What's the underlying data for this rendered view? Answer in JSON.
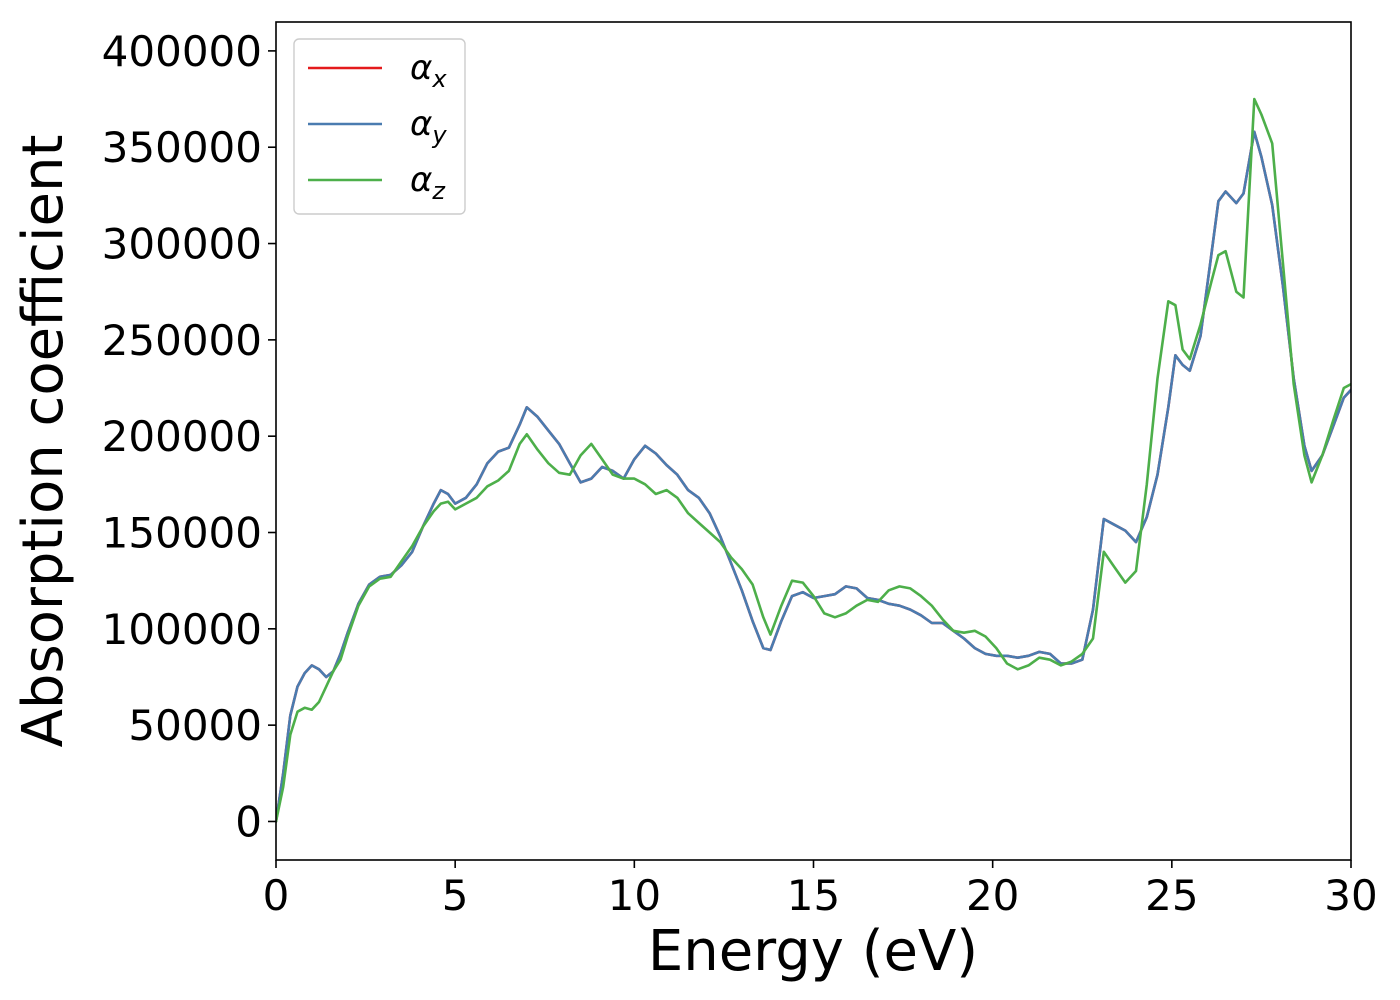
{
  "chart_data": {
    "type": "line",
    "xlabel": "Energy (eV)",
    "ylabel": "Absorption coefficient",
    "xlim": [
      0,
      30
    ],
    "ylim": [
      -20000,
      415000
    ],
    "xticks": [
      0,
      5,
      10,
      15,
      20,
      25,
      30
    ],
    "yticks": [
      0,
      50000,
      100000,
      150000,
      200000,
      250000,
      300000,
      350000,
      400000
    ],
    "grid": false,
    "legend_position": "top-left",
    "series": [
      {
        "name": "α_x",
        "name_base": "α",
        "name_sub": "x",
        "color": "#e41a1c",
        "x": [
          0,
          0.2,
          0.4,
          0.6,
          0.8,
          1.0,
          1.2,
          1.4,
          1.6,
          1.8,
          2.0,
          2.3,
          2.6,
          2.9,
          3.2,
          3.5,
          3.8,
          4.1,
          4.4,
          4.6,
          4.8,
          5.0,
          5.3,
          5.6,
          5.9,
          6.2,
          6.5,
          6.8,
          7.0,
          7.3,
          7.6,
          7.9,
          8.2,
          8.5,
          8.8,
          9.1,
          9.4,
          9.7,
          10.0,
          10.3,
          10.6,
          10.9,
          11.2,
          11.5,
          11.8,
          12.1,
          12.4,
          12.7,
          13.0,
          13.3,
          13.6,
          13.8,
          14.1,
          14.4,
          14.7,
          15.0,
          15.3,
          15.6,
          15.9,
          16.2,
          16.5,
          16.8,
          17.1,
          17.4,
          17.7,
          18.0,
          18.3,
          18.6,
          18.9,
          19.2,
          19.5,
          19.8,
          20.1,
          20.4,
          20.7,
          21.0,
          21.3,
          21.6,
          21.9,
          22.2,
          22.5,
          22.8,
          23.1,
          23.4,
          23.7,
          24.0,
          24.3,
          24.6,
          24.9,
          25.1,
          25.3,
          25.5,
          25.8,
          26.1,
          26.3,
          26.5,
          26.8,
          27.0,
          27.3,
          27.5,
          27.8,
          28.1,
          28.4,
          28.7,
          28.9,
          29.2,
          29.5,
          29.8,
          30.0
        ],
        "values": [
          0,
          25000,
          55000,
          70000,
          77000,
          81000,
          79000,
          75000,
          78000,
          87000,
          98000,
          113000,
          123000,
          127000,
          128000,
          133000,
          140000,
          153000,
          165000,
          172000,
          170000,
          165000,
          168000,
          175000,
          186000,
          192000,
          194000,
          206000,
          215000,
          210000,
          203000,
          196000,
          186000,
          176000,
          178000,
          184000,
          182000,
          178000,
          188000,
          195000,
          191000,
          185000,
          180000,
          172000,
          168000,
          160000,
          148000,
          134000,
          120000,
          104000,
          90000,
          89000,
          104000,
          117000,
          119000,
          116000,
          117000,
          118000,
          122000,
          121000,
          116000,
          115000,
          113000,
          112000,
          110000,
          107000,
          103000,
          103000,
          99000,
          95000,
          90000,
          87000,
          86000,
          86000,
          85000,
          86000,
          88000,
          87000,
          82000,
          82000,
          84000,
          110000,
          157000,
          154000,
          151000,
          145000,
          158000,
          180000,
          215000,
          242000,
          237000,
          234000,
          252000,
          294000,
          322000,
          327000,
          321000,
          326000,
          358000,
          345000,
          320000,
          278000,
          230000,
          195000,
          182000,
          190000,
          205000,
          220000,
          224000
        ]
      },
      {
        "name": "α_y",
        "name_base": "α",
        "name_sub": "y",
        "color": "#4a7cb0",
        "x": [
          0,
          0.2,
          0.4,
          0.6,
          0.8,
          1.0,
          1.2,
          1.4,
          1.6,
          1.8,
          2.0,
          2.3,
          2.6,
          2.9,
          3.2,
          3.5,
          3.8,
          4.1,
          4.4,
          4.6,
          4.8,
          5.0,
          5.3,
          5.6,
          5.9,
          6.2,
          6.5,
          6.8,
          7.0,
          7.3,
          7.6,
          7.9,
          8.2,
          8.5,
          8.8,
          9.1,
          9.4,
          9.7,
          10.0,
          10.3,
          10.6,
          10.9,
          11.2,
          11.5,
          11.8,
          12.1,
          12.4,
          12.7,
          13.0,
          13.3,
          13.6,
          13.8,
          14.1,
          14.4,
          14.7,
          15.0,
          15.3,
          15.6,
          15.9,
          16.2,
          16.5,
          16.8,
          17.1,
          17.4,
          17.7,
          18.0,
          18.3,
          18.6,
          18.9,
          19.2,
          19.5,
          19.8,
          20.1,
          20.4,
          20.7,
          21.0,
          21.3,
          21.6,
          21.9,
          22.2,
          22.5,
          22.8,
          23.1,
          23.4,
          23.7,
          24.0,
          24.3,
          24.6,
          24.9,
          25.1,
          25.3,
          25.5,
          25.8,
          26.1,
          26.3,
          26.5,
          26.8,
          27.0,
          27.3,
          27.5,
          27.8,
          28.1,
          28.4,
          28.7,
          28.9,
          29.2,
          29.5,
          29.8,
          30.0
        ],
        "values": [
          0,
          25000,
          55000,
          70000,
          77000,
          81000,
          79000,
          75000,
          78000,
          87000,
          98000,
          113000,
          123000,
          127000,
          128000,
          133000,
          140000,
          153000,
          165000,
          172000,
          170000,
          165000,
          168000,
          175000,
          186000,
          192000,
          194000,
          206000,
          215000,
          210000,
          203000,
          196000,
          186000,
          176000,
          178000,
          184000,
          182000,
          178000,
          188000,
          195000,
          191000,
          185000,
          180000,
          172000,
          168000,
          160000,
          148000,
          134000,
          120000,
          104000,
          90000,
          89000,
          104000,
          117000,
          119000,
          116000,
          117000,
          118000,
          122000,
          121000,
          116000,
          115000,
          113000,
          112000,
          110000,
          107000,
          103000,
          103000,
          99000,
          95000,
          90000,
          87000,
          86000,
          86000,
          85000,
          86000,
          88000,
          87000,
          82000,
          82000,
          84000,
          110000,
          157000,
          154000,
          151000,
          145000,
          158000,
          180000,
          215000,
          242000,
          237000,
          234000,
          252000,
          294000,
          322000,
          327000,
          321000,
          326000,
          358000,
          345000,
          320000,
          278000,
          230000,
          195000,
          182000,
          190000,
          205000,
          220000,
          224000
        ]
      },
      {
        "name": "α_z",
        "name_base": "α",
        "name_sub": "z",
        "color": "#4daf4a",
        "x": [
          0,
          0.2,
          0.4,
          0.6,
          0.8,
          1.0,
          1.2,
          1.4,
          1.6,
          1.8,
          2.0,
          2.3,
          2.6,
          2.9,
          3.2,
          3.5,
          3.8,
          4.1,
          4.4,
          4.6,
          4.8,
          5.0,
          5.3,
          5.6,
          5.9,
          6.2,
          6.5,
          6.8,
          7.0,
          7.3,
          7.6,
          7.9,
          8.2,
          8.5,
          8.8,
          9.1,
          9.4,
          9.7,
          10.0,
          10.3,
          10.6,
          10.9,
          11.2,
          11.5,
          11.8,
          12.1,
          12.4,
          12.7,
          13.0,
          13.3,
          13.6,
          13.8,
          14.1,
          14.4,
          14.7,
          15.0,
          15.3,
          15.6,
          15.9,
          16.2,
          16.5,
          16.8,
          17.1,
          17.4,
          17.7,
          18.0,
          18.3,
          18.6,
          18.9,
          19.2,
          19.5,
          19.8,
          20.1,
          20.4,
          20.7,
          21.0,
          21.3,
          21.6,
          21.9,
          22.2,
          22.5,
          22.8,
          23.1,
          23.4,
          23.7,
          24.0,
          24.3,
          24.6,
          24.9,
          25.1,
          25.3,
          25.5,
          25.8,
          26.1,
          26.3,
          26.5,
          26.8,
          27.0,
          27.3,
          27.5,
          27.8,
          28.1,
          28.4,
          28.7,
          28.9,
          29.2,
          29.5,
          29.8,
          30.0
        ],
        "values": [
          0,
          18000,
          45000,
          57000,
          59000,
          58000,
          62000,
          70000,
          78000,
          84000,
          96000,
          112000,
          122000,
          126000,
          127000,
          135000,
          143000,
          153000,
          161000,
          165000,
          166000,
          162000,
          165000,
          168000,
          174000,
          177000,
          182000,
          196000,
          201000,
          193000,
          186000,
          181000,
          180000,
          190000,
          196000,
          188000,
          180000,
          178000,
          178000,
          175000,
          170000,
          172000,
          168000,
          160000,
          155000,
          150000,
          145000,
          137000,
          131000,
          123000,
          106000,
          97000,
          112000,
          125000,
          124000,
          117000,
          108000,
          106000,
          108000,
          112000,
          115000,
          114000,
          120000,
          122000,
          121000,
          117000,
          112000,
          105000,
          99000,
          98000,
          99000,
          96000,
          90000,
          82000,
          79000,
          81000,
          85000,
          84000,
          81000,
          83000,
          87000,
          95000,
          140000,
          132000,
          124000,
          130000,
          175000,
          230000,
          270000,
          268000,
          245000,
          240000,
          258000,
          280000,
          294000,
          296000,
          275000,
          272000,
          375000,
          367000,
          352000,
          290000,
          227000,
          190000,
          176000,
          190000,
          208000,
          225000,
          227000
        ]
      }
    ]
  }
}
